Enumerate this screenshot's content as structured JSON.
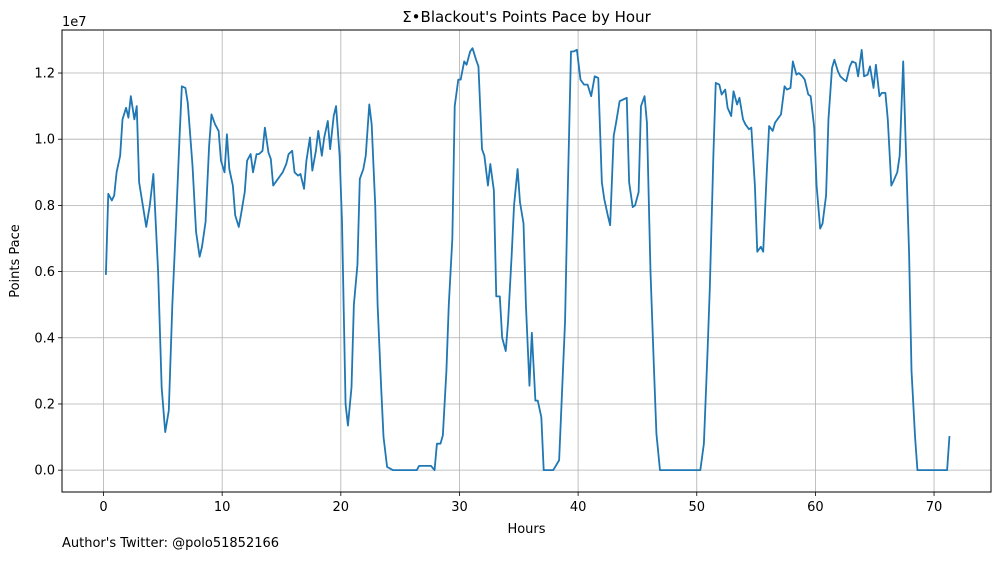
{
  "chart_data": {
    "type": "line",
    "title": "Σ•Blackout's Points Pace by Hour",
    "xlabel": "Hours",
    "ylabel": "Points Pace",
    "y_multiplier": "1e7",
    "xlim": [
      -3.5,
      74.8
    ],
    "ylim": [
      -0.066,
      1.33
    ],
    "x_ticks": [
      0,
      10,
      20,
      30,
      40,
      50,
      60,
      70
    ],
    "x_tick_labels": [
      "0",
      "10",
      "20",
      "30",
      "40",
      "50",
      "60",
      "70"
    ],
    "y_ticks": [
      0.0,
      0.2,
      0.4,
      0.6,
      0.8,
      1.0,
      1.2
    ],
    "y_tick_labels": [
      "0.0",
      "0.2",
      "0.4",
      "0.6",
      "0.8",
      "1.0",
      "1.2"
    ],
    "grid": true,
    "line_color": "#1f77b4",
    "series": [
      {
        "points": [
          [
            0.2,
            0.59
          ],
          [
            0.4,
            0.835
          ],
          [
            0.7,
            0.815
          ],
          [
            0.9,
            0.83
          ],
          [
            1.1,
            0.9
          ],
          [
            1.4,
            0.95
          ],
          [
            1.6,
            1.06
          ],
          [
            1.9,
            1.095
          ],
          [
            2.1,
            1.065
          ],
          [
            2.3,
            1.13
          ],
          [
            2.6,
            1.06
          ],
          [
            2.8,
            1.1
          ],
          [
            3.0,
            0.87
          ],
          [
            3.4,
            0.78
          ],
          [
            3.6,
            0.735
          ],
          [
            3.9,
            0.8
          ],
          [
            4.2,
            0.895
          ],
          [
            4.6,
            0.6
          ],
          [
            4.9,
            0.25
          ],
          [
            5.2,
            0.115
          ],
          [
            5.5,
            0.18
          ],
          [
            5.8,
            0.5
          ],
          [
            6.1,
            0.74
          ],
          [
            6.4,
            1.0
          ],
          [
            6.6,
            1.16
          ],
          [
            6.9,
            1.155
          ],
          [
            7.1,
            1.11
          ],
          [
            7.5,
            0.92
          ],
          [
            7.8,
            0.72
          ],
          [
            8.1,
            0.645
          ],
          [
            8.3,
            0.675
          ],
          [
            8.6,
            0.75
          ],
          [
            8.9,
            0.98
          ],
          [
            9.1,
            1.075
          ],
          [
            9.4,
            1.045
          ],
          [
            9.7,
            1.025
          ],
          [
            9.9,
            0.935
          ],
          [
            10.2,
            0.9
          ],
          [
            10.4,
            1.015
          ],
          [
            10.6,
            0.91
          ],
          [
            10.9,
            0.86
          ],
          [
            11.1,
            0.77
          ],
          [
            11.4,
            0.735
          ],
          [
            11.6,
            0.775
          ],
          [
            11.9,
            0.84
          ],
          [
            12.1,
            0.935
          ],
          [
            12.4,
            0.955
          ],
          [
            12.6,
            0.9
          ],
          [
            12.9,
            0.955
          ],
          [
            13.1,
            0.955
          ],
          [
            13.4,
            0.965
          ],
          [
            13.6,
            1.035
          ],
          [
            13.9,
            0.96
          ],
          [
            14.1,
            0.94
          ],
          [
            14.3,
            0.86
          ],
          [
            14.6,
            0.875
          ],
          [
            14.9,
            0.89
          ],
          [
            15.1,
            0.9
          ],
          [
            15.4,
            0.925
          ],
          [
            15.6,
            0.955
          ],
          [
            15.9,
            0.965
          ],
          [
            16.1,
            0.9
          ],
          [
            16.4,
            0.89
          ],
          [
            16.6,
            0.895
          ],
          [
            16.9,
            0.85
          ],
          [
            17.1,
            0.935
          ],
          [
            17.4,
            1.005
          ],
          [
            17.6,
            0.905
          ],
          [
            17.9,
            0.965
          ],
          [
            18.1,
            1.025
          ],
          [
            18.4,
            0.95
          ],
          [
            18.6,
            1.005
          ],
          [
            18.9,
            1.055
          ],
          [
            19.1,
            0.97
          ],
          [
            19.4,
            1.07
          ],
          [
            19.6,
            1.1
          ],
          [
            19.9,
            0.95
          ],
          [
            20.1,
            0.75
          ],
          [
            20.4,
            0.2
          ],
          [
            20.6,
            0.135
          ],
          [
            20.9,
            0.25
          ],
          [
            21.1,
            0.5
          ],
          [
            21.4,
            0.62
          ],
          [
            21.6,
            0.88
          ],
          [
            21.9,
            0.91
          ],
          [
            22.1,
            0.95
          ],
          [
            22.4,
            1.105
          ],
          [
            22.6,
            1.045
          ],
          [
            22.9,
            0.8
          ],
          [
            23.1,
            0.5
          ],
          [
            23.4,
            0.25
          ],
          [
            23.6,
            0.1
          ],
          [
            23.9,
            0.01
          ],
          [
            24.4,
            0.0
          ],
          [
            26.4,
            0.0
          ],
          [
            26.6,
            0.013
          ],
          [
            27.6,
            0.013
          ],
          [
            27.9,
            0.0
          ],
          [
            28.1,
            0.08
          ],
          [
            28.4,
            0.08
          ],
          [
            28.6,
            0.105
          ],
          [
            28.9,
            0.3
          ],
          [
            29.1,
            0.5
          ],
          [
            29.4,
            0.7
          ],
          [
            29.6,
            1.1
          ],
          [
            29.9,
            1.18
          ],
          [
            30.1,
            1.18
          ],
          [
            30.4,
            1.235
          ],
          [
            30.6,
            1.225
          ],
          [
            30.9,
            1.265
          ],
          [
            31.1,
            1.275
          ],
          [
            31.4,
            1.24
          ],
          [
            31.6,
            1.22
          ],
          [
            31.9,
            0.97
          ],
          [
            32.1,
            0.95
          ],
          [
            32.4,
            0.86
          ],
          [
            32.6,
            0.925
          ],
          [
            32.9,
            0.845
          ],
          [
            33.1,
            0.525
          ],
          [
            33.4,
            0.525
          ],
          [
            33.6,
            0.4
          ],
          [
            33.9,
            0.36
          ],
          [
            34.1,
            0.45
          ],
          [
            34.4,
            0.65
          ],
          [
            34.6,
            0.8
          ],
          [
            34.9,
            0.91
          ],
          [
            35.1,
            0.81
          ],
          [
            35.4,
            0.745
          ],
          [
            35.6,
            0.5
          ],
          [
            35.9,
            0.255
          ],
          [
            36.1,
            0.415
          ],
          [
            36.4,
            0.21
          ],
          [
            36.6,
            0.21
          ],
          [
            36.9,
            0.16
          ],
          [
            37.1,
            0.0
          ],
          [
            37.9,
            0.0
          ],
          [
            38.4,
            0.03
          ],
          [
            38.9,
            0.45
          ],
          [
            39.1,
            0.8
          ],
          [
            39.4,
            1.265
          ],
          [
            39.6,
            1.265
          ],
          [
            39.9,
            1.27
          ],
          [
            40.2,
            1.18
          ],
          [
            40.5,
            1.165
          ],
          [
            40.8,
            1.165
          ],
          [
            41.1,
            1.13
          ],
          [
            41.4,
            1.19
          ],
          [
            41.7,
            1.185
          ],
          [
            42.0,
            0.87
          ],
          [
            42.2,
            0.82
          ],
          [
            42.5,
            0.77
          ],
          [
            42.7,
            0.74
          ],
          [
            43.0,
            1.01
          ],
          [
            43.2,
            1.05
          ],
          [
            43.5,
            1.115
          ],
          [
            43.8,
            1.12
          ],
          [
            44.1,
            1.125
          ],
          [
            44.3,
            0.87
          ],
          [
            44.6,
            0.795
          ],
          [
            44.8,
            0.8
          ],
          [
            45.1,
            0.84
          ],
          [
            45.3,
            1.1
          ],
          [
            45.6,
            1.13
          ],
          [
            45.8,
            1.05
          ],
          [
            46.1,
            0.6
          ],
          [
            46.4,
            0.3
          ],
          [
            46.6,
            0.11
          ],
          [
            46.9,
            0.0
          ],
          [
            50.3,
            0.0
          ],
          [
            50.6,
            0.08
          ],
          [
            50.9,
            0.35
          ],
          [
            51.1,
            0.55
          ],
          [
            51.4,
            0.95
          ],
          [
            51.6,
            1.17
          ],
          [
            51.9,
            1.165
          ],
          [
            52.1,
            1.135
          ],
          [
            52.4,
            1.15
          ],
          [
            52.6,
            1.095
          ],
          [
            52.9,
            1.07
          ],
          [
            53.1,
            1.145
          ],
          [
            53.4,
            1.105
          ],
          [
            53.6,
            1.125
          ],
          [
            53.9,
            1.06
          ],
          [
            54.1,
            1.045
          ],
          [
            54.4,
            1.03
          ],
          [
            54.6,
            1.035
          ],
          [
            54.9,
            0.86
          ],
          [
            55.1,
            0.66
          ],
          [
            55.4,
            0.675
          ],
          [
            55.6,
            0.66
          ],
          [
            55.9,
            0.9
          ],
          [
            56.1,
            1.04
          ],
          [
            56.4,
            1.025
          ],
          [
            56.6,
            1.05
          ],
          [
            56.9,
            1.065
          ],
          [
            57.1,
            1.075
          ],
          [
            57.4,
            1.16
          ],
          [
            57.6,
            1.15
          ],
          [
            57.9,
            1.155
          ],
          [
            58.1,
            1.235
          ],
          [
            58.4,
            1.195
          ],
          [
            58.6,
            1.2
          ],
          [
            58.9,
            1.19
          ],
          [
            59.1,
            1.18
          ],
          [
            59.4,
            1.135
          ],
          [
            59.6,
            1.13
          ],
          [
            59.9,
            1.035
          ],
          [
            60.1,
            0.86
          ],
          [
            60.4,
            0.73
          ],
          [
            60.6,
            0.745
          ],
          [
            60.9,
            0.83
          ],
          [
            61.1,
            1.06
          ],
          [
            61.4,
            1.215
          ],
          [
            61.6,
            1.24
          ],
          [
            61.9,
            1.205
          ],
          [
            62.1,
            1.19
          ],
          [
            62.4,
            1.18
          ],
          [
            62.6,
            1.175
          ],
          [
            62.9,
            1.22
          ],
          [
            63.1,
            1.235
          ],
          [
            63.4,
            1.23
          ],
          [
            63.6,
            1.19
          ],
          [
            63.9,
            1.27
          ],
          [
            64.1,
            1.19
          ],
          [
            64.4,
            1.195
          ],
          [
            64.6,
            1.22
          ],
          [
            64.9,
            1.155
          ],
          [
            65.1,
            1.225
          ],
          [
            65.4,
            1.13
          ],
          [
            65.6,
            1.14
          ],
          [
            65.9,
            1.14
          ],
          [
            66.1,
            1.06
          ],
          [
            66.4,
            0.86
          ],
          [
            66.6,
            0.875
          ],
          [
            66.9,
            0.9
          ],
          [
            67.1,
            0.95
          ],
          [
            67.4,
            1.235
          ],
          [
            67.6,
            1.0
          ],
          [
            67.9,
            0.65
          ],
          [
            68.1,
            0.3
          ],
          [
            68.4,
            0.1
          ],
          [
            68.6,
            0.0
          ],
          [
            71.1,
            0.0
          ],
          [
            71.3,
            0.103
          ]
        ]
      }
    ]
  },
  "footer": {
    "author_text": "Author's Twitter: @polo51852166"
  }
}
